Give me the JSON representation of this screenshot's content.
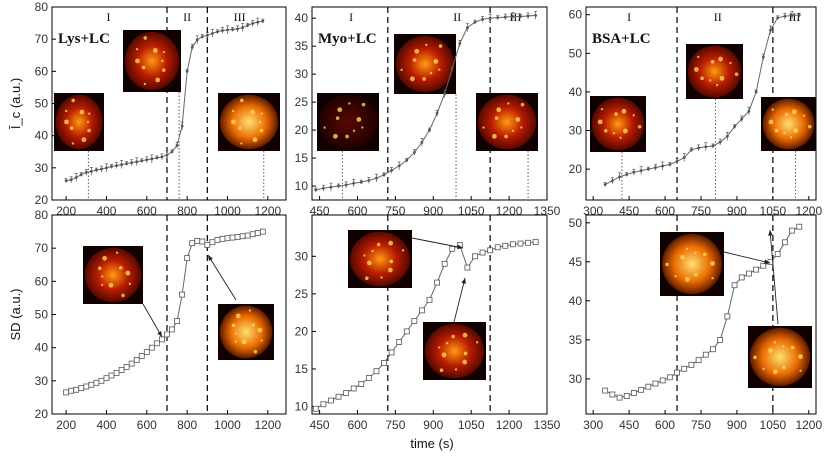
{
  "figure": {
    "xlabel": "time (s)",
    "colors": {
      "line": "#666666",
      "marker": "#555555",
      "axis": "#000000",
      "divider": "#000000"
    },
    "image_theme": [
      "#2a0000",
      "#7a0a00",
      "#d43000",
      "#ff9a10",
      "#ffe070"
    ]
  },
  "chart_data": [
    {
      "type": "line",
      "row": "top",
      "col": 0,
      "title": "Lys+LC",
      "ylabel": "Ī_c (a.u.)",
      "xlim": [
        130,
        1290
      ],
      "ylim": [
        20,
        80
      ],
      "xticks": [
        200,
        400,
        600,
        800,
        1000,
        1200
      ],
      "yticks": [
        20,
        30,
        40,
        50,
        60,
        70,
        80
      ],
      "dividers": [
        700,
        900
      ],
      "regions": [
        {
          "label": "I",
          "x": 410
        },
        {
          "label": "II",
          "x": 800
        },
        {
          "label": "III",
          "x": 1060
        }
      ],
      "markers": [
        310,
        760,
        1180
      ],
      "x": [
        200,
        225,
        250,
        275,
        300,
        325,
        350,
        375,
        400,
        425,
        450,
        475,
        500,
        525,
        550,
        575,
        600,
        625,
        650,
        675,
        700,
        725,
        750,
        775,
        800,
        825,
        850,
        875,
        900,
        925,
        950,
        975,
        1000,
        1025,
        1050,
        1075,
        1100,
        1125,
        1150,
        1175
      ],
      "y": [
        26.0,
        26.3,
        27.0,
        27.9,
        28.6,
        28.9,
        29.3,
        29.6,
        30.0,
        30.4,
        30.7,
        31.0,
        31.3,
        31.6,
        31.9,
        32.2,
        32.5,
        32.8,
        33.1,
        33.4,
        34.0,
        35.0,
        37.0,
        43.0,
        60.0,
        67.5,
        69.8,
        70.8,
        71.2,
        71.8,
        72.3,
        72.7,
        72.9,
        73.0,
        73.2,
        73.6,
        74.3,
        74.9,
        75.3,
        75.6
      ]
    },
    {
      "type": "line",
      "row": "top",
      "col": 1,
      "title": "Myo+LC",
      "ylabel": "",
      "xlim": [
        420,
        1350
      ],
      "ylim": [
        7.5,
        42
      ],
      "xticks": [
        450,
        600,
        750,
        900,
        1050,
        1200,
        1350
      ],
      "yticks": [
        10,
        15,
        20,
        25,
        30,
        35,
        40
      ],
      "dividers": [
        720,
        1125
      ],
      "regions": [
        {
          "label": "I",
          "x": 575
        },
        {
          "label": "II",
          "x": 995
        },
        {
          "label": "III",
          "x": 1225
        }
      ],
      "markers": [
        540,
        990,
        1275
      ],
      "x": [
        435,
        465,
        495,
        525,
        555,
        585,
        615,
        645,
        675,
        705,
        735,
        765,
        795,
        825,
        855,
        885,
        915,
        945,
        975,
        1005,
        1035,
        1065,
        1095,
        1125,
        1155,
        1185,
        1215,
        1245,
        1275,
        1305
      ],
      "y": [
        9.3,
        9.6,
        9.8,
        10.0,
        10.2,
        10.5,
        10.7,
        11.0,
        11.4,
        12.0,
        12.8,
        13.6,
        14.6,
        16.0,
        17.8,
        20.0,
        23.0,
        26.5,
        31.0,
        35.5,
        38.3,
        39.3,
        39.8,
        40.0,
        40.1,
        40.2,
        40.3,
        40.3,
        40.4,
        40.5
      ]
    },
    {
      "type": "line",
      "row": "top",
      "col": 2,
      "title": "BSA+LC",
      "ylabel": "",
      "xlim": [
        270,
        1230
      ],
      "ylim": [
        12,
        62
      ],
      "xticks": [
        300,
        450,
        600,
        750,
        900,
        1050,
        1200
      ],
      "yticks": [
        20,
        30,
        40,
        50,
        60
      ],
      "dividers": [
        650,
        1050
      ],
      "regions": [
        {
          "label": "I",
          "x": 450
        },
        {
          "label": "II",
          "x": 820
        },
        {
          "label": "III",
          "x": 1140
        }
      ],
      "markers": [
        420,
        810,
        1145
      ],
      "x": [
        350,
        380,
        410,
        440,
        470,
        500,
        530,
        560,
        590,
        620,
        650,
        680,
        710,
        740,
        770,
        800,
        830,
        860,
        890,
        920,
        950,
        980,
        1010,
        1040,
        1070,
        1100,
        1130,
        1160
      ],
      "y": [
        16.0,
        17.0,
        18.0,
        18.6,
        19.2,
        19.6,
        20.0,
        20.4,
        20.8,
        21.2,
        22.0,
        23.0,
        25.0,
        25.5,
        25.8,
        26.0,
        27.0,
        28.5,
        31.0,
        33.0,
        35.0,
        40.0,
        49.0,
        56.0,
        59.2,
        59.6,
        59.8,
        59.9
      ]
    },
    {
      "type": "line",
      "row": "bottom",
      "col": 0,
      "title": "",
      "ylabel": "SD (a.u.)",
      "xlim": [
        130,
        1290
      ],
      "ylim": [
        20,
        80
      ],
      "xticks": [
        200,
        400,
        600,
        800,
        1000,
        1200
      ],
      "yticks": [
        20,
        30,
        40,
        50,
        60,
        70,
        80
      ],
      "dividers": [
        700,
        900
      ],
      "x": [
        200,
        225,
        250,
        275,
        300,
        325,
        350,
        375,
        400,
        425,
        450,
        475,
        500,
        525,
        550,
        575,
        600,
        625,
        650,
        675,
        700,
        725,
        750,
        775,
        800,
        825,
        850,
        875,
        900,
        925,
        950,
        975,
        1000,
        1025,
        1050,
        1075,
        1100,
        1125,
        1150,
        1175
      ],
      "y": [
        26.5,
        27.0,
        27.3,
        27.8,
        28.3,
        28.8,
        29.4,
        30.0,
        30.8,
        31.6,
        32.4,
        33.3,
        34.2,
        35.2,
        36.3,
        37.5,
        38.7,
        40.0,
        41.3,
        42.5,
        44.0,
        45.5,
        48.0,
        56.0,
        67.0,
        71.5,
        72.2,
        72.0,
        71.0,
        71.8,
        72.5,
        72.8,
        73.0,
        73.2,
        73.4,
        73.6,
        73.8,
        74.2,
        74.6,
        75.0
      ]
    },
    {
      "type": "line",
      "row": "bottom",
      "col": 1,
      "title": "",
      "ylabel": "",
      "xlim": [
        420,
        1350
      ],
      "ylim": [
        9,
        35.5
      ],
      "xticks": [
        450,
        600,
        750,
        900,
        1050,
        1200,
        1350
      ],
      "yticks": [
        10,
        15,
        20,
        25,
        30
      ],
      "dividers": [
        720,
        1125
      ],
      "x": [
        435,
        465,
        495,
        525,
        555,
        585,
        615,
        645,
        675,
        705,
        735,
        765,
        795,
        825,
        855,
        885,
        915,
        945,
        975,
        1005,
        1035,
        1065,
        1095,
        1125,
        1155,
        1185,
        1215,
        1245,
        1275,
        1305
      ],
      "y": [
        9.7,
        10.3,
        10.8,
        11.3,
        11.8,
        12.4,
        13.0,
        13.8,
        14.7,
        15.8,
        17.2,
        18.6,
        20.0,
        21.4,
        22.8,
        24.2,
        26.5,
        29.0,
        31.0,
        31.5,
        28.5,
        30.0,
        30.5,
        30.8,
        31.2,
        31.4,
        31.6,
        31.7,
        31.8,
        31.9
      ]
    },
    {
      "type": "line",
      "row": "bottom",
      "col": 2,
      "title": "",
      "ylabel": "",
      "xlim": [
        270,
        1230
      ],
      "ylim": [
        25.5,
        51
      ],
      "xticks": [
        300,
        450,
        600,
        750,
        900,
        1050,
        1200
      ],
      "yticks": [
        30,
        35,
        40,
        45,
        50
      ],
      "dividers": [
        650,
        1050
      ],
      "x": [
        350,
        380,
        410,
        440,
        470,
        500,
        530,
        560,
        590,
        620,
        650,
        680,
        710,
        740,
        770,
        800,
        830,
        860,
        890,
        920,
        950,
        980,
        1010,
        1040,
        1070,
        1100,
        1130,
        1160
      ],
      "y": [
        28.5,
        28.0,
        27.6,
        27.8,
        28.2,
        28.6,
        29.0,
        29.4,
        29.8,
        30.2,
        30.8,
        31.3,
        31.8,
        32.4,
        33.1,
        33.8,
        35.0,
        38.0,
        42.0,
        43.0,
        43.5,
        44.0,
        44.5,
        45.0,
        46.0,
        47.5,
        49.0,
        49.5
      ]
    }
  ]
}
